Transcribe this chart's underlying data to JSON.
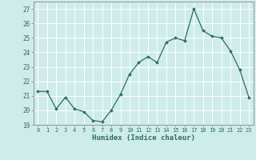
{
  "x": [
    0,
    1,
    2,
    3,
    4,
    5,
    6,
    7,
    8,
    9,
    10,
    11,
    12,
    13,
    14,
    15,
    16,
    17,
    18,
    19,
    20,
    21,
    22,
    23
  ],
  "y": [
    21.3,
    21.3,
    20.1,
    20.9,
    20.1,
    19.9,
    19.3,
    19.2,
    20.0,
    21.1,
    22.5,
    23.3,
    23.7,
    23.3,
    24.7,
    25.0,
    24.8,
    27.0,
    25.5,
    25.1,
    25.0,
    24.1,
    22.8,
    20.9
  ],
  "xlabel": "Humidex (Indice chaleur)",
  "ylim": [
    19,
    27.5
  ],
  "yticks": [
    19,
    20,
    21,
    22,
    23,
    24,
    25,
    26,
    27
  ],
  "xticks": [
    0,
    1,
    2,
    3,
    4,
    5,
    6,
    7,
    8,
    9,
    10,
    11,
    12,
    13,
    14,
    15,
    16,
    17,
    18,
    19,
    20,
    21,
    22,
    23
  ],
  "line_color": "#2d6e5e",
  "marker": "D",
  "marker_size": 1.8,
  "bg_color": "#ceecea",
  "grid_color": "#ffffff",
  "border_color": "#888888",
  "tick_label_color": "#2d6e5e",
  "xlabel_color": "#2d6e5e"
}
